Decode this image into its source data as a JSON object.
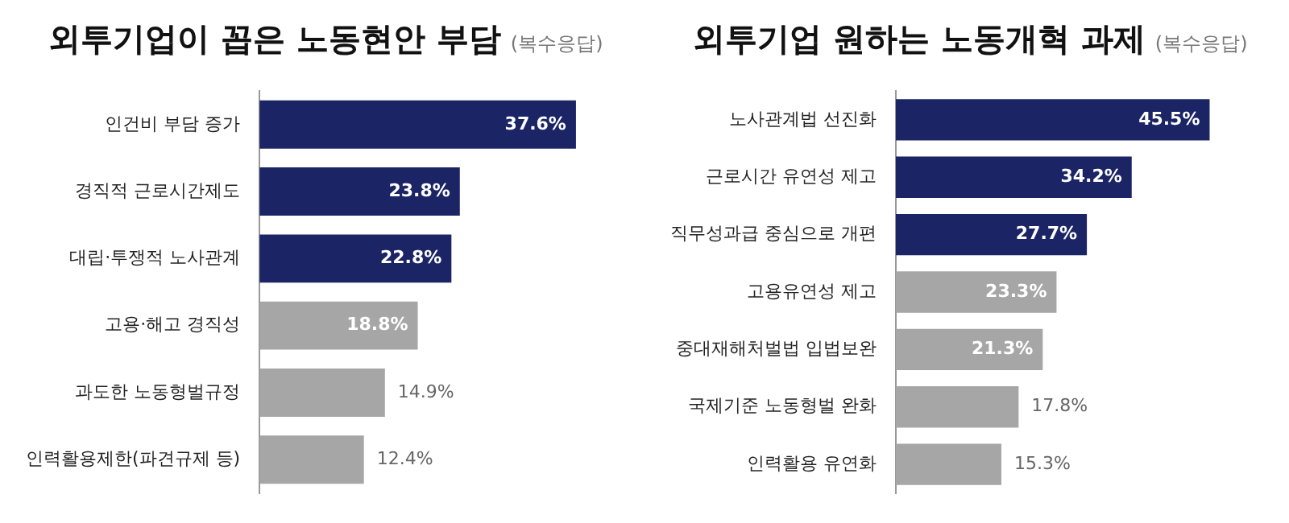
{
  "chart_data": [
    {
      "type": "bar",
      "orientation": "horizontal",
      "title": "외투기업이 꼽은 노동현안 부담",
      "subtitle": "(복수응답)",
      "tick_labels": "y",
      "grid": false,
      "legend": false,
      "categories": [
        "인건비 부담 증가",
        "경직적 근로시간제도",
        "대립·투쟁적 노사관계",
        "고용·해고 경직성",
        "과도한 노동형벌규정",
        "인력활용제한(파견규제 등)"
      ],
      "values": [
        37.6,
        23.8,
        22.8,
        18.8,
        14.9,
        12.4
      ],
      "colors": [
        "#1b2464",
        "#1b2464",
        "#1b2464",
        "#a6a6a6",
        "#a6a6a6",
        "#a6a6a6"
      ],
      "value_labels": [
        "37.6%",
        "23.8%",
        "22.8%",
        "18.8%",
        "14.9%",
        "12.4%"
      ]
    },
    {
      "type": "bar",
      "orientation": "horizontal",
      "title": "외투기업 원하는 노동개혁 과제",
      "subtitle": "(복수응답)",
      "tick_labels": "y",
      "grid": false,
      "legend": false,
      "categories": [
        "노사관계법 선진화",
        "근로시간 유연성 제고",
        "직무성과급 중심으로 개편",
        "고용유연성 제고",
        "중대재해처벌법 입법보완",
        "국제기준 노동형벌 완화",
        "인력활용 유연화"
      ],
      "values": [
        45.5,
        34.2,
        27.7,
        23.3,
        21.3,
        17.8,
        15.3
      ],
      "colors": [
        "#1b2464",
        "#1b2464",
        "#1b2464",
        "#a6a6a6",
        "#a6a6a6",
        "#a6a6a6",
        "#a6a6a6"
      ],
      "value_labels": [
        "45.5%",
        "34.2%",
        "27.7%",
        "23.3%",
        "21.3%",
        "17.8%",
        "15.3%"
      ]
    }
  ]
}
